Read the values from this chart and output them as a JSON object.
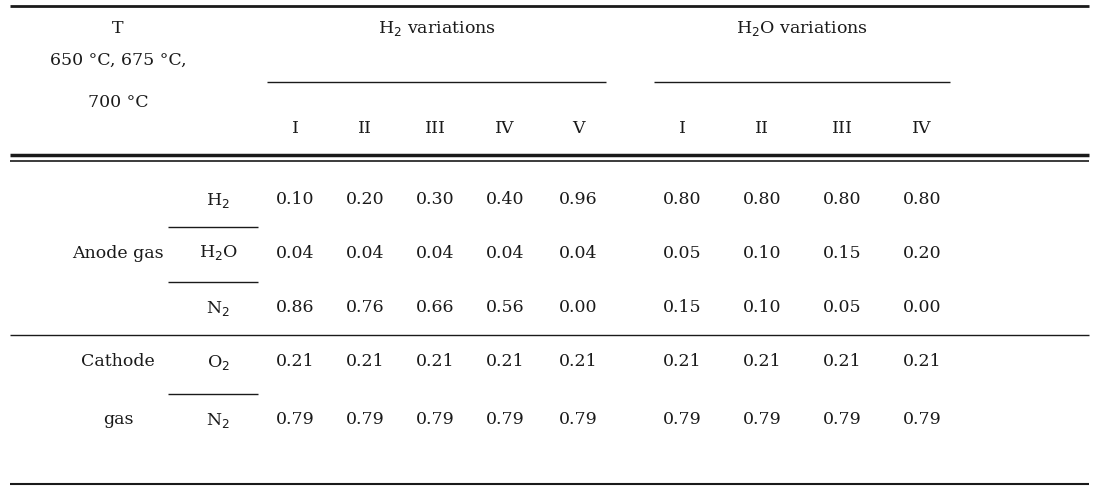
{
  "h2_var_label": "H$_2$ variations",
  "h2o_var_label": "H$_2$O variations",
  "h2_sub_labels": [
    "I",
    "II",
    "III",
    "IV",
    "V"
  ],
  "h2o_sub_labels": [
    "I",
    "II",
    "III",
    "IV"
  ],
  "anode_species": [
    "H$_2$",
    "H$_2$O",
    "N$_2$"
  ],
  "cathode_species": [
    "O$_2$",
    "N$_2$"
  ],
  "anode_h2_vals": [
    [
      "0.10",
      "0.20",
      "0.30",
      "0.40",
      "0.96"
    ],
    [
      "0.04",
      "0.04",
      "0.04",
      "0.04",
      "0.04"
    ],
    [
      "0.86",
      "0.76",
      "0.66",
      "0.56",
      "0.00"
    ]
  ],
  "anode_h2o_vals": [
    [
      "0.80",
      "0.80",
      "0.80",
      "0.80"
    ],
    [
      "0.05",
      "0.10",
      "0.15",
      "0.20"
    ],
    [
      "0.15",
      "0.10",
      "0.05",
      "0.00"
    ]
  ],
  "cathode_h2_vals": [
    [
      "0.21",
      "0.21",
      "0.21",
      "0.21",
      "0.21"
    ],
    [
      "0.79",
      "0.79",
      "0.79",
      "0.79",
      "0.79"
    ]
  ],
  "cathode_h2o_vals": [
    [
      "0.21",
      "0.21",
      "0.21",
      "0.21"
    ],
    [
      "0.79",
      "0.79",
      "0.79",
      "0.79"
    ]
  ],
  "bg_color": "#ffffff",
  "text_color": "#1a1a1a",
  "font_size": 12.5,
  "font_family": "DejaVu Serif"
}
